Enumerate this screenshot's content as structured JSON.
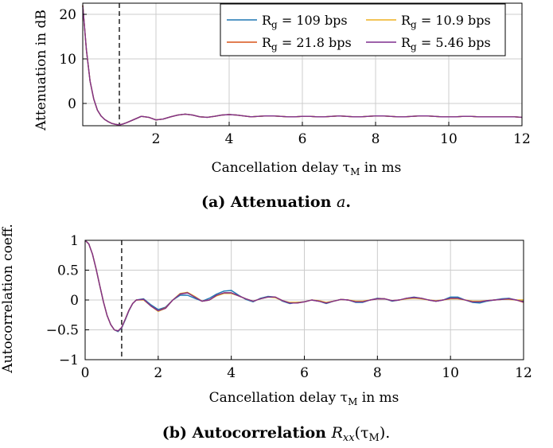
{
  "colors": {
    "series": [
      "#1f77b4",
      "#d95319",
      "#edb120",
      "#7e2f8e"
    ],
    "grid": "#cccccc",
    "axis": "#000000"
  },
  "chart_data": [
    {
      "type": "line",
      "caption_prefix": "(a) ",
      "caption_text": "Attenuation ",
      "caption_var": "a",
      "caption_suffix": ".",
      "xlabel": "Cancellation delay τ",
      "xlabel_sub": "M",
      "xlabel_suffix": " in ms",
      "ylabel": "Attenuation in dB",
      "xlim": [
        0,
        12
      ],
      "ylim": [
        -5,
        22.5
      ],
      "xticks": [
        2,
        4,
        6,
        8,
        10,
        12
      ],
      "xtick_labels": [
        "2",
        "4",
        "6",
        "8",
        "10",
        "12"
      ],
      "yticks": [
        0,
        10,
        20
      ],
      "ytick_labels": [
        "0",
        "10",
        "20"
      ],
      "grid": true,
      "legend_position": "top-right",
      "vline_x": 1,
      "x": [
        0,
        0.1,
        0.2,
        0.3,
        0.4,
        0.5,
        0.6,
        0.7,
        0.8,
        0.9,
        1.0,
        1.1,
        1.2,
        1.4,
        1.6,
        1.8,
        2.0,
        2.2,
        2.4,
        2.6,
        2.8,
        3.0,
        3.2,
        3.4,
        3.6,
        3.8,
        4.0,
        4.2,
        4.4,
        4.6,
        4.8,
        5.0,
        5.2,
        5.4,
        5.6,
        5.8,
        6.0,
        6.2,
        6.4,
        6.6,
        6.8,
        7.0,
        7.2,
        7.4,
        7.6,
        7.8,
        8.0,
        8.2,
        8.4,
        8.6,
        8.8,
        9.0,
        9.2,
        9.4,
        9.6,
        9.8,
        10.0,
        10.2,
        10.4,
        10.6,
        10.8,
        11.0,
        11.2,
        11.4,
        11.6,
        11.8,
        12.0
      ],
      "series": [
        {
          "name": "R_g = 109 bps",
          "label_main": "R",
          "label_sub": "g",
          "label_rest": " = 109 bps",
          "values": [
            22,
            12,
            5,
            1,
            -1.5,
            -2.8,
            -3.6,
            -4.1,
            -4.5,
            -4.7,
            -4.8,
            -4.6,
            -4.3,
            -3.6,
            -2.9,
            -3.1,
            -3.7,
            -3.5,
            -3.0,
            -2.6,
            -2.4,
            -2.6,
            -3.0,
            -3.1,
            -2.9,
            -2.6,
            -2.5,
            -2.6,
            -2.8,
            -3.0,
            -2.9,
            -2.8,
            -2.8,
            -2.9,
            -3.0,
            -3.0,
            -2.9,
            -2.9,
            -3.0,
            -3.0,
            -2.9,
            -2.8,
            -2.9,
            -3.0,
            -3.0,
            -2.9,
            -2.8,
            -2.8,
            -2.9,
            -3.0,
            -3.0,
            -2.9,
            -2.8,
            -2.8,
            -2.9,
            -3.0,
            -3.0,
            -3.0,
            -2.9,
            -2.9,
            -3.0,
            -3.0,
            -3.0,
            -3.0,
            -3.0,
            -3.0,
            -3.1
          ]
        },
        {
          "name": "R_g = 21.8 bps",
          "label_main": "R",
          "label_sub": "g",
          "label_rest": " = 21.8 bps",
          "values": [
            22,
            12,
            5,
            1,
            -1.5,
            -2.8,
            -3.6,
            -4.1,
            -4.5,
            -4.7,
            -4.8,
            -4.6,
            -4.3,
            -3.6,
            -2.9,
            -3.1,
            -3.7,
            -3.5,
            -3.0,
            -2.6,
            -2.4,
            -2.6,
            -3.0,
            -3.1,
            -2.9,
            -2.6,
            -2.5,
            -2.6,
            -2.8,
            -3.0,
            -2.9,
            -2.8,
            -2.8,
            -2.9,
            -3.0,
            -3.0,
            -2.9,
            -2.9,
            -3.0,
            -3.0,
            -2.9,
            -2.8,
            -2.9,
            -3.0,
            -3.0,
            -2.9,
            -2.8,
            -2.8,
            -2.9,
            -3.0,
            -3.0,
            -2.9,
            -2.8,
            -2.8,
            -2.9,
            -3.0,
            -3.0,
            -3.0,
            -2.9,
            -2.9,
            -3.0,
            -3.0,
            -3.0,
            -3.0,
            -3.0,
            -3.0,
            -3.1
          ]
        },
        {
          "name": "R_g = 10.9 bps",
          "label_main": "R",
          "label_sub": "g",
          "label_rest": " = 10.9 bps",
          "values": [
            22,
            12,
            5,
            1,
            -1.5,
            -2.8,
            -3.6,
            -4.1,
            -4.5,
            -4.7,
            -4.8,
            -4.6,
            -4.3,
            -3.6,
            -2.9,
            -3.1,
            -3.7,
            -3.5,
            -3.0,
            -2.6,
            -2.4,
            -2.6,
            -3.0,
            -3.1,
            -2.9,
            -2.6,
            -2.5,
            -2.6,
            -2.8,
            -3.0,
            -2.9,
            -2.8,
            -2.8,
            -2.9,
            -3.0,
            -3.0,
            -2.9,
            -2.9,
            -3.0,
            -3.0,
            -2.9,
            -2.8,
            -2.9,
            -3.0,
            -3.0,
            -2.9,
            -2.8,
            -2.8,
            -2.9,
            -3.0,
            -3.0,
            -2.9,
            -2.8,
            -2.8,
            -2.9,
            -3.0,
            -3.0,
            -3.0,
            -2.9,
            -2.9,
            -3.0,
            -3.0,
            -3.0,
            -3.0,
            -3.0,
            -3.0,
            -3.1
          ]
        },
        {
          "name": "R_g = 5.46 bps",
          "label_main": "R",
          "label_sub": "g",
          "label_rest": " = 5.46 bps",
          "values": [
            22,
            12,
            5,
            1,
            -1.5,
            -2.8,
            -3.6,
            -4.1,
            -4.5,
            -4.7,
            -4.8,
            -4.6,
            -4.3,
            -3.6,
            -2.9,
            -3.1,
            -3.7,
            -3.5,
            -3.0,
            -2.6,
            -2.4,
            -2.6,
            -3.0,
            -3.1,
            -2.9,
            -2.6,
            -2.5,
            -2.6,
            -2.8,
            -3.0,
            -2.9,
            -2.8,
            -2.8,
            -2.9,
            -3.0,
            -3.0,
            -2.9,
            -2.9,
            -3.0,
            -3.0,
            -2.9,
            -2.8,
            -2.9,
            -3.0,
            -3.0,
            -2.9,
            -2.8,
            -2.8,
            -2.9,
            -3.0,
            -3.0,
            -2.9,
            -2.8,
            -2.8,
            -2.9,
            -3.0,
            -3.0,
            -3.0,
            -2.9,
            -2.9,
            -3.0,
            -3.0,
            -3.0,
            -3.0,
            -3.0,
            -3.0,
            -3.1
          ]
        }
      ]
    },
    {
      "type": "line",
      "caption_prefix": "(b) ",
      "caption_text": "Autocorrelation ",
      "caption_var": "R",
      "caption_var_sub": "xx",
      "caption_args": "(τ",
      "caption_args_sub": "M",
      "caption_suffix": ").",
      "xlabel": "Cancellation delay τ",
      "xlabel_sub": "M",
      "xlabel_suffix": " in ms",
      "ylabel": "Autocorrelation coeff.",
      "xlim": [
        0,
        12
      ],
      "ylim": [
        -1,
        1
      ],
      "xticks": [
        0,
        2,
        4,
        6,
        8,
        10,
        12
      ],
      "xtick_labels": [
        "0",
        "2",
        "4",
        "6",
        "8",
        "10",
        "12"
      ],
      "yticks": [
        -1,
        -0.5,
        0,
        0.5,
        1
      ],
      "ytick_labels": [
        "−1",
        "−0.5",
        "0",
        "0.5",
        "1"
      ],
      "grid": true,
      "vline_x": 1,
      "x": [
        0,
        0.1,
        0.2,
        0.3,
        0.4,
        0.5,
        0.6,
        0.7,
        0.8,
        0.9,
        1.0,
        1.1,
        1.2,
        1.3,
        1.4,
        1.6,
        1.8,
        2.0,
        2.2,
        2.4,
        2.6,
        2.8,
        3.0,
        3.2,
        3.4,
        3.6,
        3.8,
        4.0,
        4.2,
        4.4,
        4.6,
        4.8,
        5.0,
        5.2,
        5.4,
        5.6,
        5.8,
        6.0,
        6.2,
        6.4,
        6.6,
        6.8,
        7.0,
        7.2,
        7.4,
        7.6,
        7.8,
        8.0,
        8.2,
        8.4,
        8.6,
        8.8,
        9.0,
        9.2,
        9.4,
        9.6,
        9.8,
        10.0,
        10.2,
        10.4,
        10.6,
        10.8,
        11.0,
        11.2,
        11.4,
        11.6,
        11.8,
        12.0
      ],
      "series": [
        {
          "name": "R_g = 109 bps",
          "values": [
            1,
            0.94,
            0.77,
            0.52,
            0.24,
            -0.03,
            -0.26,
            -0.41,
            -0.5,
            -0.53,
            -0.47,
            -0.33,
            -0.18,
            -0.06,
            0.0,
            0.02,
            -0.08,
            -0.16,
            -0.12,
            0.0,
            0.08,
            0.08,
            0.03,
            -0.02,
            0.03,
            0.1,
            0.15,
            0.16,
            0.08,
            0.01,
            -0.03,
            0.03,
            0.06,
            0.05,
            -0.02,
            -0.06,
            -0.04,
            -0.03,
            0.0,
            -0.02,
            -0.06,
            -0.02,
            0.01,
            0.0,
            -0.04,
            -0.04,
            0.0,
            0.03,
            0.02,
            -0.02,
            0.0,
            0.03,
            0.05,
            0.03,
            0.0,
            -0.02,
            0.0,
            0.05,
            0.05,
            0.0,
            -0.04,
            -0.05,
            -0.02,
            0.0,
            0.02,
            0.03,
            0.0,
            -0.02
          ]
        },
        {
          "name": "R_g = 21.8 bps",
          "values": [
            1,
            0.94,
            0.77,
            0.52,
            0.24,
            -0.03,
            -0.26,
            -0.41,
            -0.5,
            -0.52,
            -0.46,
            -0.32,
            -0.17,
            -0.06,
            0.0,
            0.01,
            -0.1,
            -0.18,
            -0.13,
            0.0,
            0.1,
            0.12,
            0.05,
            -0.02,
            0.0,
            0.08,
            0.12,
            0.12,
            0.07,
            0.02,
            -0.02,
            0.02,
            0.05,
            0.05,
            -0.01,
            -0.05,
            -0.05,
            -0.03,
            0.0,
            -0.02,
            -0.05,
            -0.02,
            0.01,
            0.0,
            -0.03,
            -0.03,
            0.0,
            0.02,
            0.02,
            -0.01,
            0.0,
            0.03,
            0.04,
            0.03,
            0.0,
            -0.02,
            0.0,
            0.03,
            0.03,
            0.0,
            -0.03,
            -0.03,
            -0.01,
            0.0,
            0.01,
            0.02,
            0.0,
            -0.04
          ]
        },
        {
          "name": "R_g = 10.9 bps",
          "values": [
            1,
            0.94,
            0.77,
            0.52,
            0.24,
            -0.03,
            -0.26,
            -0.41,
            -0.5,
            -0.52,
            -0.46,
            -0.32,
            -0.17,
            -0.06,
            0.0,
            0.0,
            -0.1,
            -0.19,
            -0.14,
            0.0,
            0.11,
            0.13,
            0.06,
            -0.02,
            0.0,
            0.07,
            0.11,
            0.11,
            0.07,
            0.02,
            -0.02,
            0.02,
            0.05,
            0.04,
            -0.01,
            -0.04,
            -0.04,
            -0.03,
            0.0,
            -0.01,
            -0.04,
            -0.02,
            0.01,
            0.0,
            -0.02,
            -0.02,
            0.0,
            0.02,
            0.02,
            -0.01,
            0.0,
            0.02,
            0.03,
            0.02,
            0.0,
            -0.01,
            0.0,
            0.02,
            0.02,
            0.0,
            -0.02,
            -0.02,
            -0.01,
            0.0,
            0.01,
            0.01,
            0.0,
            0.0
          ]
        },
        {
          "name": "R_g = 5.46 bps",
          "values": [
            1,
            0.94,
            0.77,
            0.52,
            0.24,
            -0.03,
            -0.26,
            -0.41,
            -0.5,
            -0.52,
            -0.46,
            -0.32,
            -0.17,
            -0.06,
            0.0,
            0.01,
            -0.1,
            -0.18,
            -0.14,
            0.0,
            0.1,
            0.12,
            0.05,
            -0.02,
            0.0,
            0.08,
            0.12,
            0.12,
            0.07,
            0.02,
            -0.02,
            0.02,
            0.05,
            0.05,
            -0.01,
            -0.05,
            -0.05,
            -0.03,
            0.0,
            -0.02,
            -0.05,
            -0.02,
            0.01,
            0.0,
            -0.03,
            -0.03,
            0.0,
            0.02,
            0.02,
            -0.01,
            0.0,
            0.03,
            0.04,
            0.03,
            0.0,
            -0.02,
            0.0,
            0.03,
            0.03,
            0.0,
            -0.03,
            -0.03,
            -0.01,
            0.0,
            0.01,
            0.02,
            0.0,
            -0.03
          ]
        }
      ]
    }
  ]
}
